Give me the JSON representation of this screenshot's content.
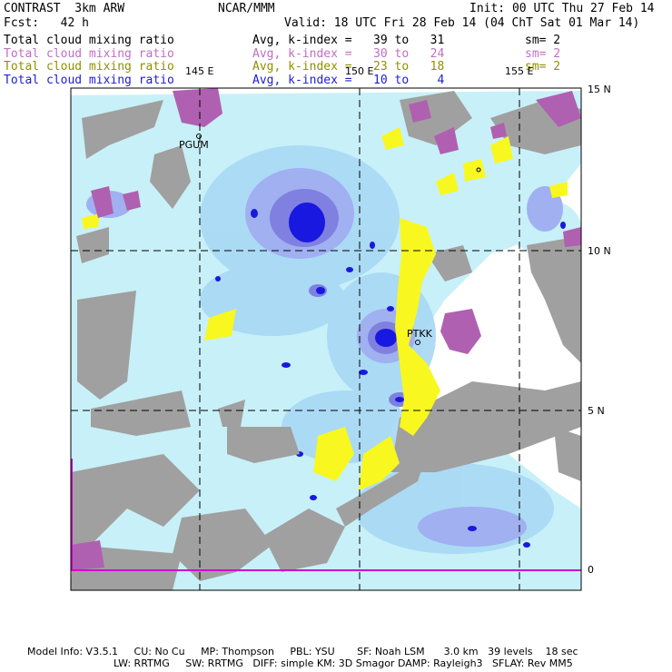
{
  "header": {
    "model_name": "CONTRAST  3km ARW",
    "center": "NCAR/MMM",
    "init": "Init: 00 UTC Thu 27 Feb 14",
    "fcst": "Fcst:   42 h",
    "valid": "Valid: 18 UTC Fri 28 Feb 14 (04 ChT Sat 01 Mar 14)"
  },
  "fields": [
    {
      "name": "Total cloud mixing ratio",
      "range": "Avg, k-index =   39 to   31",
      "smooth": "sm= 2",
      "color": "#000000"
    },
    {
      "name": "Total cloud mixing ratio",
      "range": "Avg, k-index =   30 to   24",
      "smooth": "sm= 2",
      "color": "#c070c0"
    },
    {
      "name": "Total cloud mixing ratio",
      "range": "Avg, k-index =   23 to   18",
      "smooth": "sm= 2",
      "color": "#909000"
    },
    {
      "name": "Total cloud mixing ratio",
      "range": "Avg, k-index =   10 to    4",
      "smooth": "",
      "color": "#2020d0"
    }
  ],
  "map": {
    "lon_labels": [
      "145 E",
      "150 E",
      "155 E"
    ],
    "lat_labels": [
      "15 N",
      "10 N",
      "5 N",
      "0"
    ],
    "stations": [
      "PGUM",
      "PTKK"
    ]
  },
  "colors": {
    "land_gray": "#a0a0a0",
    "light_blue": "#c8f0f8",
    "mid_blue": "#a8c8f0",
    "periwinkle": "#9090e0",
    "dark_blue": "#1818e0",
    "yellow": "#f8f820",
    "magenta": "#b060b0"
  },
  "footer": {
    "line1": "Model Info: V3.5.1     CU: No Cu     MP: Thompson     PBL: YSU       SF: Noah LSM      3.0 km   39 levels    18 sec",
    "line2": "LW: RRTMG     SW: RRTMG   DIFF: simple KM: 3D Smagor DAMP: Rayleigh3   SFLAY: Rev MM5"
  }
}
